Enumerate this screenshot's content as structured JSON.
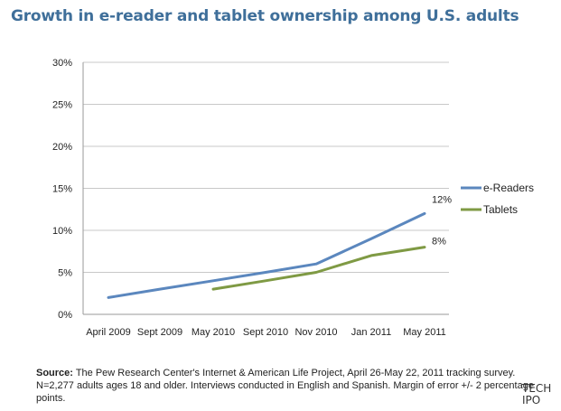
{
  "chart_data": {
    "type": "line",
    "title": "Growth in e-reader and tablet ownership among U.S. adults",
    "categories": [
      "April 2009",
      "Sept 2009",
      "May 2010",
      "Sept 2010",
      "Nov 2010",
      "Jan 2011",
      "May 2011"
    ],
    "y_ticks": [
      "0%",
      "5%",
      "10%",
      "15%",
      "20%",
      "25%",
      "30%"
    ],
    "ylim": [
      0,
      30
    ],
    "grid": true,
    "legend_position": "right",
    "series": [
      {
        "name": "e-Readers",
        "color": "#5b87be",
        "values": [
          2,
          3,
          4,
          5,
          6,
          9,
          12
        ],
        "end_label": "12%"
      },
      {
        "name": "Tablets",
        "color": "#7f9a44",
        "values": [
          null,
          null,
          3,
          4,
          5,
          7,
          8
        ],
        "end_label": "8%"
      }
    ]
  },
  "source": {
    "label": "Source:",
    "text": " The Pew Research Center's Internet & American Life Project, April 26-May 22, 2011 tracking survey. N=2,277 adults ages 18 and older. Interviews conducted in English and Spanish. Margin of error +/- 2 percentage points."
  },
  "watermark": {
    "line1": "TECH",
    "line2": "IPO"
  }
}
